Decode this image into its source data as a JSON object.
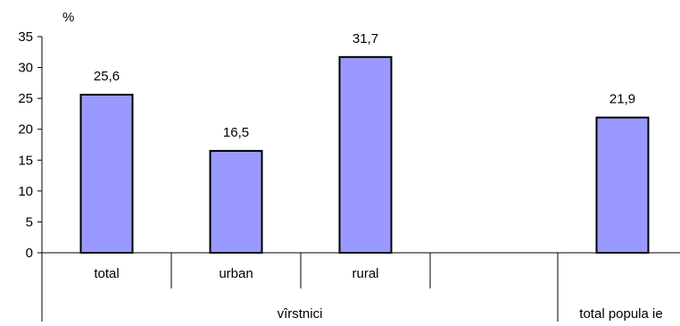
{
  "chart_data": {
    "type": "bar",
    "ylabel": "%",
    "ylim": [
      0,
      35
    ],
    "yticks": [
      "0",
      "5",
      "10",
      "15",
      "20",
      "25",
      "30",
      "35"
    ],
    "grid": false,
    "categories": [
      "total",
      "urban",
      "rural",
      "",
      "total popula ie"
    ],
    "group_labels": [
      "vîrstnici",
      "total popula ie"
    ],
    "values": [
      25.6,
      16.5,
      31.7,
      null,
      21.9
    ],
    "value_labels": [
      "25,6",
      "16,5",
      "31,7",
      "",
      "21,9"
    ],
    "bar_color": "#9999ff",
    "bar_border_color": "#000000"
  }
}
